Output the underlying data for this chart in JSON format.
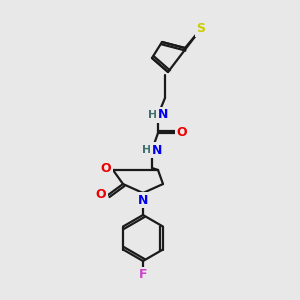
{
  "background_color": "#e8e8e8",
  "bond_color": "#1a1a1a",
  "atom_colors": {
    "S": "#cccc00",
    "N": "#0000ee",
    "O": "#ee0000",
    "F": "#cc44cc",
    "C": "#1a1a1a",
    "H": "#407070"
  },
  "figsize": [
    3.0,
    3.0
  ],
  "dpi": 100,
  "lw": 1.6
}
